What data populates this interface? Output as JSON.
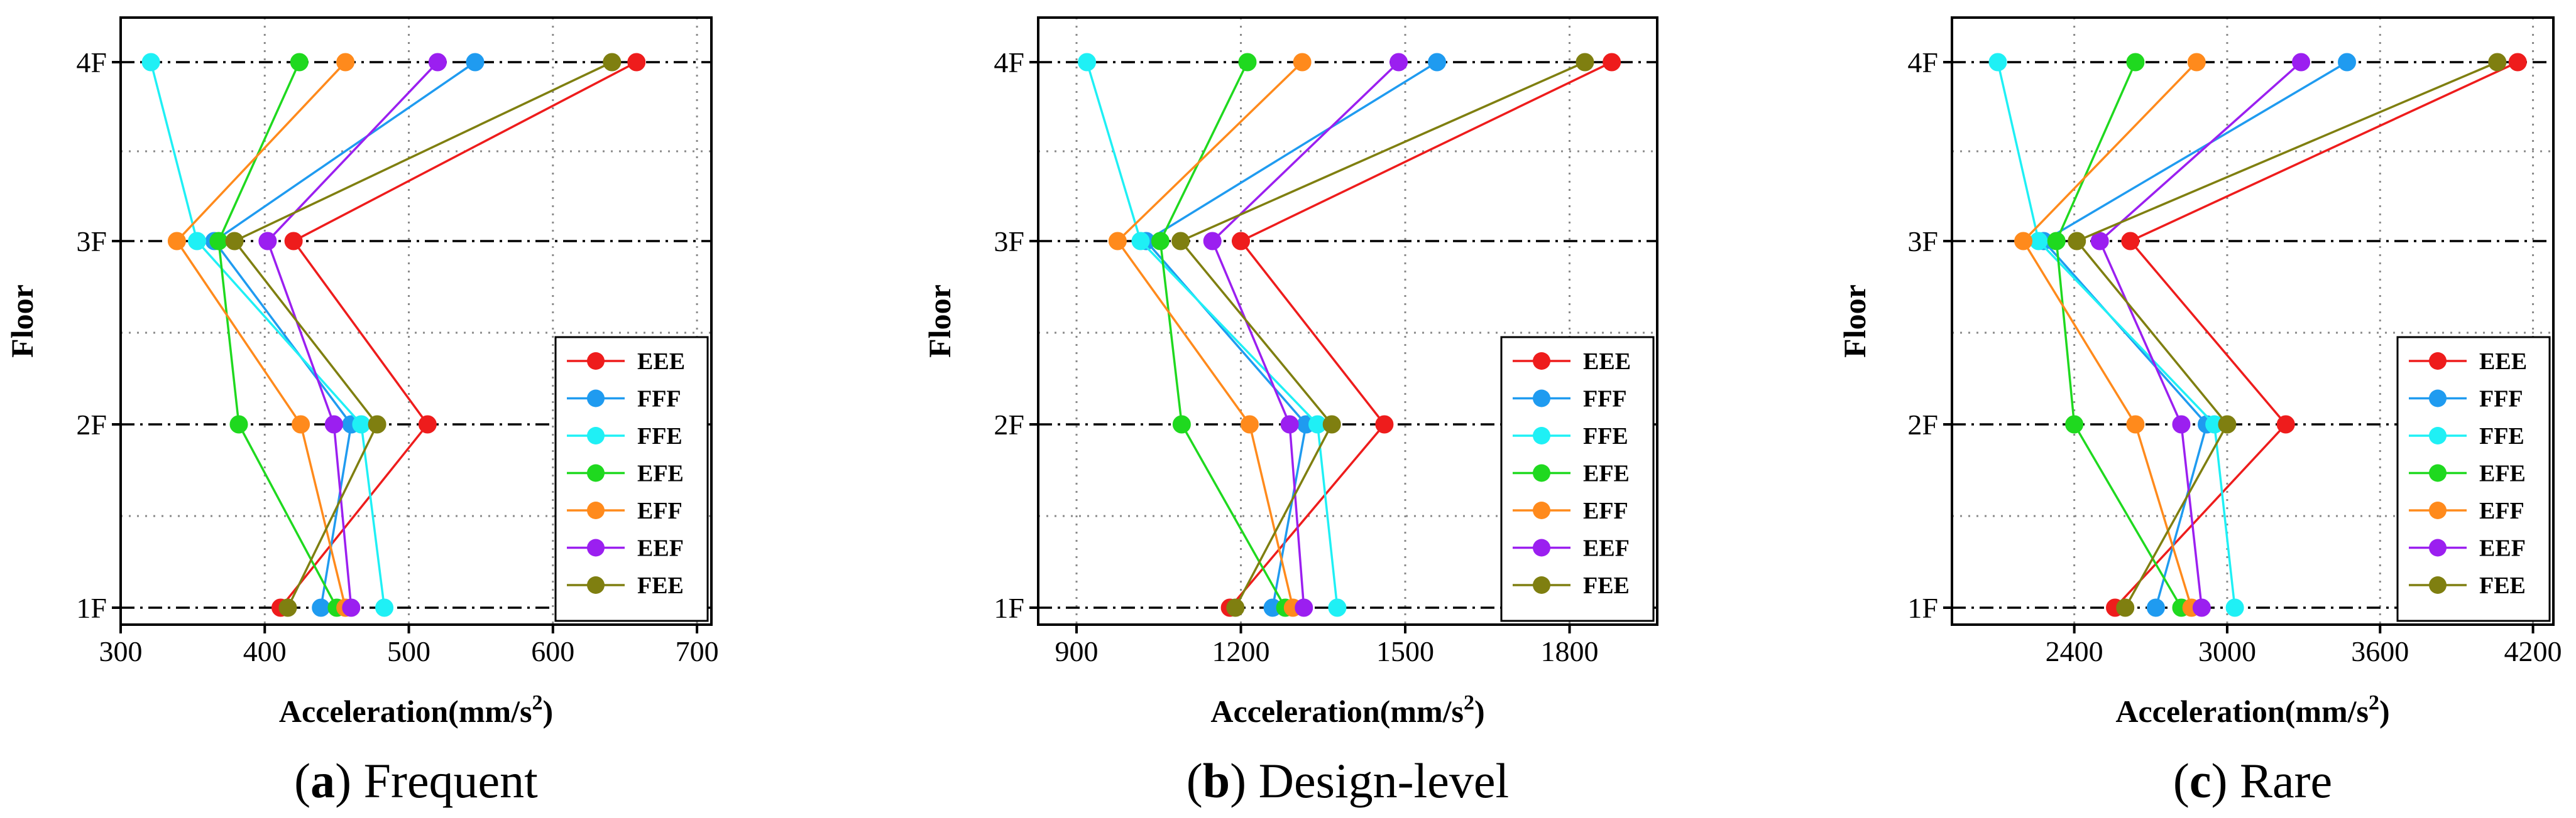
{
  "colors": {
    "EEE": "#ee1c1c",
    "FFF": "#1f9bf0",
    "FFE": "#1ff0f5",
    "EFE": "#1fd91f",
    "EFF": "#ff8a1c",
    "EEF": "#9b1ff0",
    "FEE": "#7f7f10"
  },
  "chart_data": [
    {
      "type": "line",
      "orientation": "horizontal-x-value",
      "caption_letter": "a",
      "caption_text": " Frequent",
      "ylabel": "Floor",
      "xlabel": "Acceleration(mm/s",
      "xlabel_sup": "2",
      "xlabel_end": ")",
      "categories": [
        "1F",
        "2F",
        "3F",
        "4F"
      ],
      "xlim": [
        300,
        710
      ],
      "xticks": [
        "300",
        "400",
        "500",
        "600",
        "700"
      ],
      "grid": true,
      "legend_position": "bottom-right",
      "series": [
        {
          "name": "EEE",
          "values": [
            411,
            513,
            420,
            658
          ]
        },
        {
          "name": "FFF",
          "values": [
            439,
            460,
            365,
            546
          ]
        },
        {
          "name": "FFE",
          "values": [
            483,
            467,
            353,
            321
          ]
        },
        {
          "name": "EFE",
          "values": [
            450,
            382,
            368,
            424
          ]
        },
        {
          "name": "EFF",
          "values": [
            456,
            425,
            339,
            456
          ]
        },
        {
          "name": "EEF",
          "values": [
            460,
            448,
            402,
            520
          ]
        },
        {
          "name": "FEE",
          "values": [
            416,
            478,
            379,
            641
          ]
        }
      ]
    },
    {
      "type": "line",
      "orientation": "horizontal-x-value",
      "caption_letter": "b",
      "caption_text": " Design-level",
      "ylabel": "Floor",
      "xlabel": "Acceleration(mm/s",
      "xlabel_sup": "2",
      "xlabel_end": ")",
      "categories": [
        "1F",
        "2F",
        "3F",
        "4F"
      ],
      "xlim": [
        830,
        1960
      ],
      "xticks": [
        "900",
        "1200",
        "1500",
        "1800"
      ],
      "grid": true,
      "legend_position": "bottom-right",
      "series": [
        {
          "name": "EEE",
          "values": [
            1180,
            1462,
            1200,
            1877
          ]
        },
        {
          "name": "FFF",
          "values": [
            1258,
            1319,
            1027,
            1558
          ]
        },
        {
          "name": "FFE",
          "values": [
            1376,
            1340,
            1017,
            919
          ]
        },
        {
          "name": "EFE",
          "values": [
            1281,
            1092,
            1053,
            1212
          ]
        },
        {
          "name": "EFF",
          "values": [
            1295,
            1216,
            975,
            1312
          ]
        },
        {
          "name": "EEF",
          "values": [
            1315,
            1289,
            1148,
            1488
          ]
        },
        {
          "name": "FEE",
          "values": [
            1190,
            1366,
            1090,
            1828
          ]
        }
      ]
    },
    {
      "type": "line",
      "orientation": "horizontal-x-value",
      "caption_letter": "c",
      "caption_text": " Rare",
      "ylabel": "Floor",
      "xlabel": "Acceleration(mm/s",
      "xlabel_sup": "2",
      "xlabel_end": ")",
      "categories": [
        "1F",
        "2F",
        "3F",
        "4F"
      ],
      "xlim": [
        1920,
        4280
      ],
      "xticks": [
        "2400",
        "3000",
        "3600",
        "4200"
      ],
      "grid": true,
      "legend_position": "bottom-right",
      "series": [
        {
          "name": "EEE",
          "values": [
            2560,
            3230,
            2620,
            4140
          ]
        },
        {
          "name": "FFF",
          "values": [
            2720,
            2920,
            2280,
            3470
          ]
        },
        {
          "name": "FFE",
          "values": [
            3030,
            2950,
            2260,
            2100
          ]
        },
        {
          "name": "EFE",
          "values": [
            2820,
            2400,
            2330,
            2640
          ]
        },
        {
          "name": "EFF",
          "values": [
            2860,
            2640,
            2200,
            2880
          ]
        },
        {
          "name": "EEF",
          "values": [
            2900,
            2820,
            2500,
            3290
          ]
        },
        {
          "name": "FEE",
          "values": [
            2600,
            3000,
            2410,
            4060
          ]
        }
      ]
    }
  ]
}
